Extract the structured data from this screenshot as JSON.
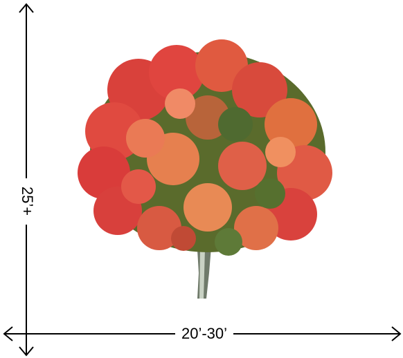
{
  "dimensions": {
    "height": "25’+",
    "width": "20’-30’"
  }
}
